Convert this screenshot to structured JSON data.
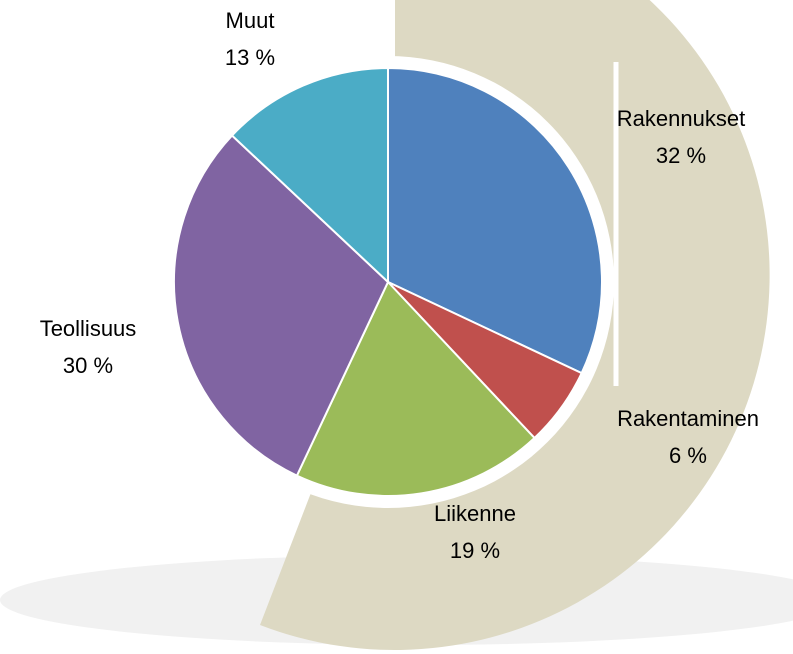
{
  "chart_data": {
    "type": "pie",
    "categories": [
      "Rakennukset",
      "Rakentaminen",
      "Liikenne",
      "Teollisuus",
      "Muut"
    ],
    "values": [
      32,
      6,
      19,
      30,
      13
    ],
    "value_labels": [
      "32 %",
      "6 %",
      "19 %",
      "30 %",
      "13 %"
    ],
    "colors": [
      "#4f81bd",
      "#c0504d",
      "#9bbb59",
      "#8064a2",
      "#4bacc6"
    ]
  }
}
